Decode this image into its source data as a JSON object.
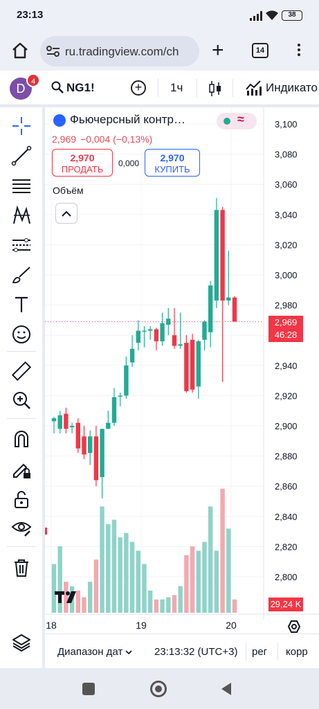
{
  "status": {
    "time": "23:13",
    "battery": "38"
  },
  "browser": {
    "url": "ru.tradingview.com/ch",
    "tab_count": "14"
  },
  "toolbar": {
    "avatar_letter": "D",
    "notification_count": "4",
    "symbol": "NG1!",
    "interval": "1ч",
    "indicators_label": "Индикато"
  },
  "drawing_tools": [
    "crosshair-icon",
    "trend-line-icon",
    "horizontal-lines-icon",
    "pattern-icon",
    "fib-icon",
    "brush-icon",
    "text-icon",
    "emoji-icon",
    "ruler-icon",
    "zoom-in-icon",
    "magnet-icon",
    "lock-pencil-icon",
    "unlock-icon",
    "eye-icon",
    "trash-icon",
    "layers-icon"
  ],
  "legend": {
    "title": "Фьючерсный контр…",
    "last_price": "2,969",
    "change": "−0,004 (−0,13%)",
    "sell_price": "2,970",
    "sell_label": "ПРОДАТЬ",
    "spread": "0,000",
    "buy_price": "2,970",
    "buy_label": "КУПИТЬ",
    "volume_label": "Объём"
  },
  "price_tag": {
    "price": "2,969",
    "countdown": "46:28"
  },
  "volume_tag": "29,24 K",
  "colors": {
    "up": "#22ab94",
    "down": "#f23645",
    "up_volume": "#8fd3c8",
    "down_volume": "#f4a8ae",
    "accent": "#2962ff"
  },
  "chart_data": {
    "type": "candlestick",
    "symbol": "NG1!",
    "interval": "1ч",
    "y_axis_ticks": [
      "3,100",
      "3,080",
      "3,060",
      "3,040",
      "3,020",
      "3,000",
      "2,980",
      "2,960",
      "2,940",
      "2,920",
      "2,900",
      "2,880",
      "2,860",
      "2,840",
      "2,820",
      "2,800"
    ],
    "x_axis_ticks": [
      "18",
      "19",
      "20"
    ],
    "ylim": [
      2.79,
      3.107
    ],
    "last_price": 2.969,
    "candles": [
      {
        "o": 2.903,
        "h": 2.906,
        "l": 2.895,
        "c": 2.905
      },
      {
        "o": 2.898,
        "h": 2.91,
        "l": 2.895,
        "c": 2.907
      },
      {
        "o": 2.908,
        "h": 2.912,
        "l": 2.895,
        "c": 2.898
      },
      {
        "o": 2.899,
        "h": 2.902,
        "l": 2.895,
        "c": 2.9
      },
      {
        "o": 2.902,
        "h": 2.905,
        "l": 2.882,
        "c": 2.885
      },
      {
        "o": 2.893,
        "h": 2.9,
        "l": 2.878,
        "c": 2.881
      },
      {
        "o": 2.882,
        "h": 2.897,
        "l": 2.874,
        "c": 2.893
      },
      {
        "o": 2.893,
        "h": 2.9,
        "l": 2.86,
        "c": 2.864
      },
      {
        "o": 2.866,
        "h": 2.898,
        "l": 2.852,
        "c": 2.898
      },
      {
        "o": 2.898,
        "h": 2.91,
        "l": 2.898,
        "c": 2.902
      },
      {
        "o": 2.902,
        "h": 2.925,
        "l": 2.9,
        "c": 2.919
      },
      {
        "o": 2.92,
        "h": 2.922,
        "l": 2.913,
        "c": 2.92
      },
      {
        "o": 2.92,
        "h": 2.946,
        "l": 2.918,
        "c": 2.94
      },
      {
        "o": 2.942,
        "h": 2.96,
        "l": 2.939,
        "c": 2.951
      },
      {
        "o": 2.955,
        "h": 2.97,
        "l": 2.95,
        "c": 2.963
      },
      {
        "o": 2.963,
        "h": 2.966,
        "l": 2.952,
        "c": 2.963
      },
      {
        "o": 2.963,
        "h": 2.966,
        "l": 2.957,
        "c": 2.964
      },
      {
        "o": 2.964,
        "h": 2.965,
        "l": 2.95,
        "c": 2.956
      },
      {
        "o": 2.956,
        "h": 2.975,
        "l": 2.953,
        "c": 2.968
      },
      {
        "o": 2.967,
        "h": 2.978,
        "l": 2.96,
        "c": 2.971
      },
      {
        "o": 2.96,
        "h": 2.978,
        "l": 2.951,
        "c": 2.953
      },
      {
        "o": 2.953,
        "h": 2.975,
        "l": 2.951,
        "c": 2.954
      },
      {
        "o": 2.955,
        "h": 2.96,
        "l": 2.922,
        "c": 2.923
      },
      {
        "o": 2.957,
        "h": 2.961,
        "l": 2.922,
        "c": 2.924
      },
      {
        "o": 2.926,
        "h": 2.957,
        "l": 2.918,
        "c": 2.956
      },
      {
        "o": 2.957,
        "h": 2.97,
        "l": 2.95,
        "c": 2.969
      },
      {
        "o": 2.962,
        "h": 2.996,
        "l": 2.952,
        "c": 2.993
      },
      {
        "o": 2.983,
        "h": 3.051,
        "l": 2.978,
        "c": 3.043
      },
      {
        "o": 3.043,
        "h": 3.045,
        "l": 2.929,
        "c": 2.983
      },
      {
        "o": 2.983,
        "h": 3.016,
        "l": 2.98,
        "c": 2.985
      },
      {
        "o": 2.985,
        "h": 2.986,
        "l": 2.969,
        "c": 2.969
      }
    ],
    "volume": [
      22,
      30,
      14,
      12,
      10,
      7,
      14,
      24,
      48,
      40,
      42,
      34,
      36,
      32,
      28,
      22,
      10,
      6,
      6,
      7,
      8,
      12,
      26,
      30,
      28,
      32,
      48,
      28,
      56,
      38,
      6
    ]
  }
}
